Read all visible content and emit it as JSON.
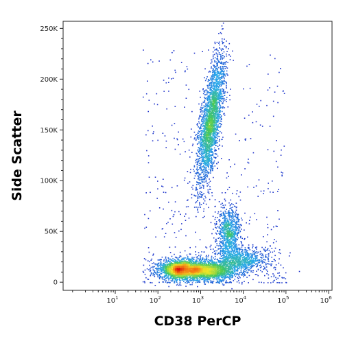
{
  "chart_data": {
    "type": "scatter",
    "xlabel": "CD38 PerCP",
    "ylabel": "Side Scatter",
    "x_scale": "log",
    "xlim": [
      0.6,
      1200000
    ],
    "ylim": [
      -8000,
      257000
    ],
    "x_ticks": [
      {
        "value": 10,
        "base": "10",
        "exp": "1"
      },
      {
        "value": 100,
        "base": "10",
        "exp": "2"
      },
      {
        "value": 1000,
        "base": "10",
        "exp": "3"
      },
      {
        "value": 10000,
        "base": "10",
        "exp": "4"
      },
      {
        "value": 100000,
        "base": "10",
        "exp": "5"
      },
      {
        "value": 1000000,
        "base": "10",
        "exp": "6"
      }
    ],
    "y_ticks": [
      {
        "value": 0,
        "label": "0"
      },
      {
        "value": 50000,
        "label": "50K"
      },
      {
        "value": 100000,
        "label": "100K"
      },
      {
        "value": 150000,
        "label": "150K"
      },
      {
        "value": 200000,
        "label": "200K"
      },
      {
        "value": 250000,
        "label": "250K"
      }
    ],
    "grid": false,
    "color_scale": "density (blue-low, red-high)",
    "populations": [
      {
        "x_center": 1700,
        "x_spread_decades": 0.12,
        "y_center": 160000,
        "y_spread": 32000,
        "tilt_decades_per_100K": 0.35,
        "points": 2600
      },
      {
        "x_center": 4500,
        "x_spread_decades": 0.14,
        "y_center": 48000,
        "y_spread": 14000,
        "tilt_decades_per_100K": 0.0,
        "points": 900
      },
      {
        "x_center": 350,
        "x_spread_decades": 0.28,
        "y_center": 13000,
        "y_spread": 5000,
        "tilt_decades_per_100K": 0.0,
        "points": 2200
      },
      {
        "x_center": 1800,
        "x_spread_decades": 0.3,
        "y_center": 12000,
        "y_spread": 5000,
        "tilt_decades_per_100K": 0.0,
        "points": 1500
      },
      {
        "x_center": 9000,
        "x_spread_decades": 0.35,
        "y_center": 22000,
        "y_spread": 6000,
        "tilt_decades_per_100K": 0.0,
        "points": 800
      }
    ]
  }
}
